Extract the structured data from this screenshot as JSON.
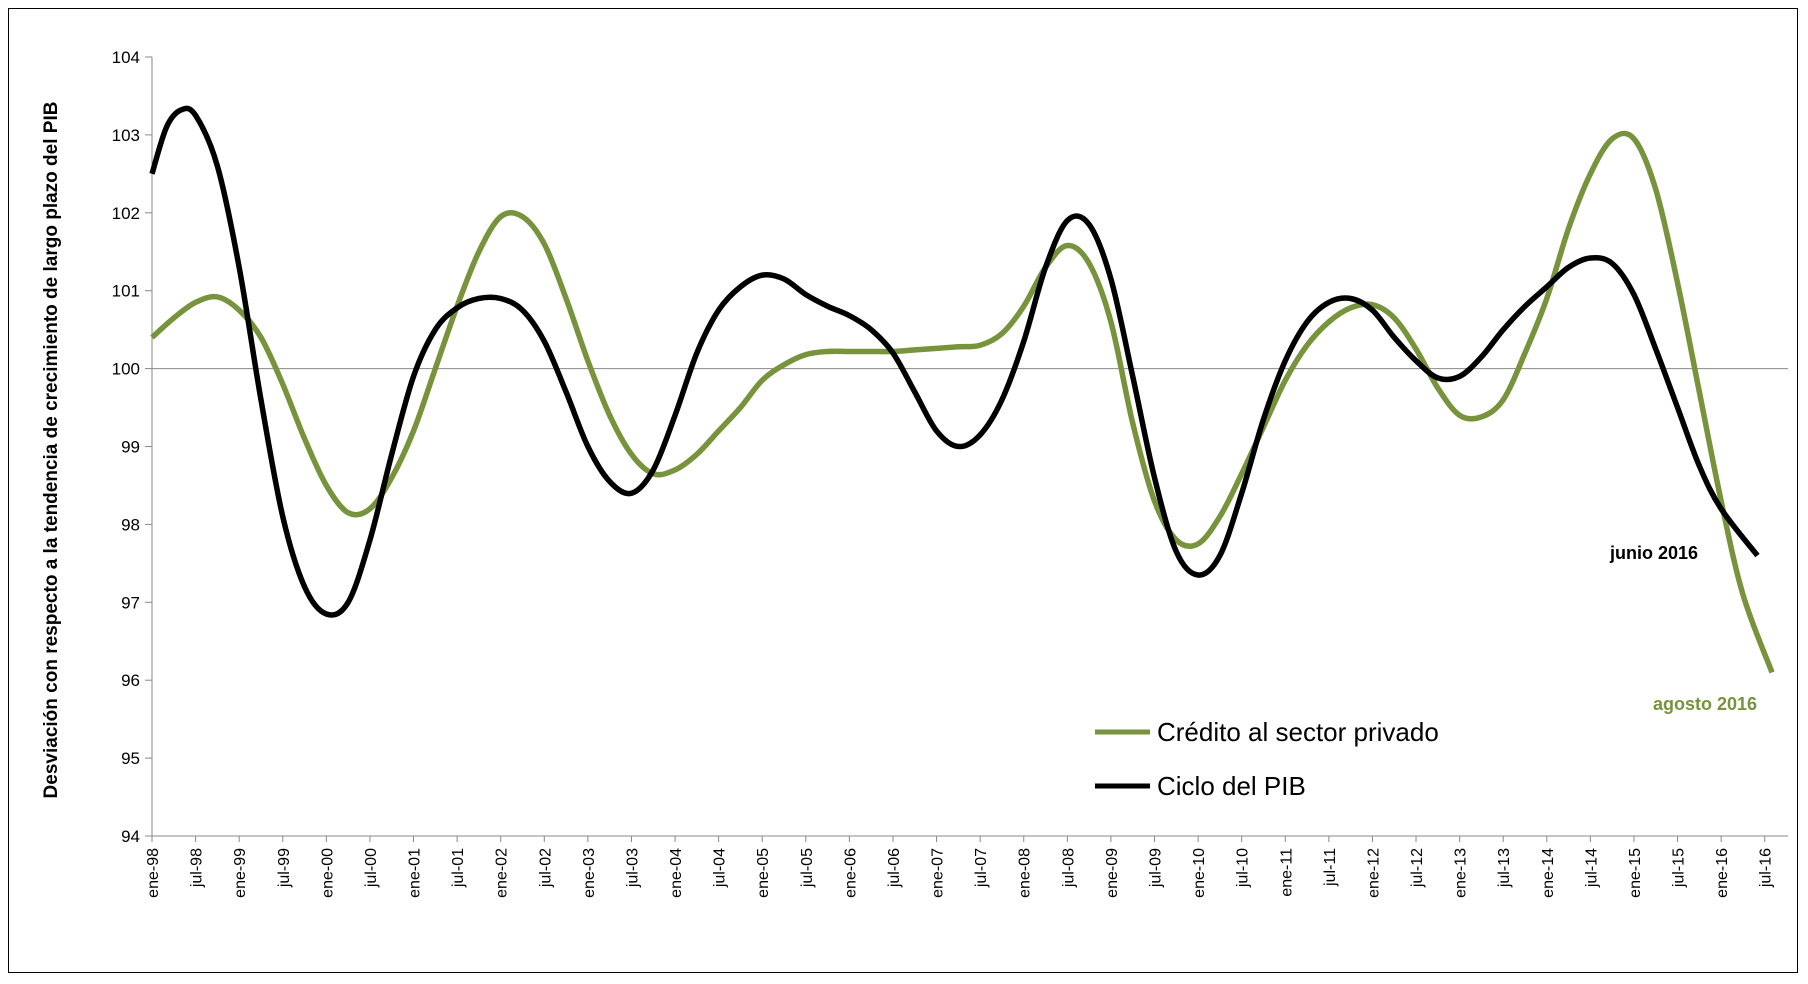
{
  "chart_data": {
    "type": "line",
    "title": "",
    "ylabel": "Desviación con respecto a la tendencia de crecimiento de largo plazo del PIB",
    "xlabel": "",
    "ylim": [
      94,
      104
    ],
    "yticks": [
      "94",
      "95",
      "96",
      "97",
      "98",
      "99",
      "100",
      "101",
      "102",
      "103",
      "104"
    ],
    "reference_line": 100,
    "grid": false,
    "legend_position": "bottom-right",
    "x_start": "1998-01",
    "x_end": "2016-08",
    "x_tick_labels": [
      "ene-98",
      "jul-98",
      "ene-99",
      "jul-99",
      "ene-00",
      "jul-00",
      "ene-01",
      "jul-01",
      "ene-02",
      "jul-02",
      "ene-03",
      "jul-03",
      "ene-04",
      "jul-04",
      "ene-05",
      "jul-05",
      "ene-06",
      "jul-06",
      "ene-07",
      "jul-07",
      "ene-08",
      "jul-08",
      "ene-09",
      "jul-09",
      "ene-10",
      "jul-10",
      "ene-11",
      "jul-11",
      "ene-12",
      "jul-12",
      "ene-13",
      "jul-13",
      "ene-14",
      "jul-14",
      "ene-15",
      "jul-15",
      "ene-16",
      "jul-16"
    ],
    "series": [
      {
        "name": "Crédito al sector privado",
        "color": "#77933c",
        "points": [
          [
            "1998-01",
            100.4
          ],
          [
            "1998-04",
            100.65
          ],
          [
            "1998-07",
            100.85
          ],
          [
            "1998-10",
            100.92
          ],
          [
            "1999-01",
            100.75
          ],
          [
            "1999-04",
            100.4
          ],
          [
            "1999-07",
            99.8
          ],
          [
            "1999-10",
            99.1
          ],
          [
            "2000-01",
            98.5
          ],
          [
            "2000-04",
            98.15
          ],
          [
            "2000-07",
            98.2
          ],
          [
            "2000-10",
            98.6
          ],
          [
            "2001-01",
            99.2
          ],
          [
            "2001-04",
            100.0
          ],
          [
            "2001-07",
            100.8
          ],
          [
            "2001-10",
            101.5
          ],
          [
            "2002-01",
            101.95
          ],
          [
            "2002-04",
            101.95
          ],
          [
            "2002-07",
            101.6
          ],
          [
            "2002-10",
            100.9
          ],
          [
            "2003-01",
            100.1
          ],
          [
            "2003-04",
            99.4
          ],
          [
            "2003-07",
            98.9
          ],
          [
            "2003-10",
            98.65
          ],
          [
            "2004-01",
            98.7
          ],
          [
            "2004-04",
            98.9
          ],
          [
            "2004-07",
            99.2
          ],
          [
            "2004-10",
            99.5
          ],
          [
            "2005-01",
            99.85
          ],
          [
            "2005-04",
            100.05
          ],
          [
            "2005-07",
            100.18
          ],
          [
            "2005-10",
            100.22
          ],
          [
            "2006-01",
            100.22
          ],
          [
            "2006-04",
            100.22
          ],
          [
            "2006-07",
            100.22
          ],
          [
            "2006-10",
            100.24
          ],
          [
            "2007-01",
            100.26
          ],
          [
            "2007-04",
            100.28
          ],
          [
            "2007-07",
            100.3
          ],
          [
            "2007-10",
            100.45
          ],
          [
            "2008-01",
            100.8
          ],
          [
            "2008-04",
            101.3
          ],
          [
            "2008-07",
            101.58
          ],
          [
            "2008-10",
            101.35
          ],
          [
            "2009-01",
            100.6
          ],
          [
            "2009-04",
            99.3
          ],
          [
            "2009-07",
            98.3
          ],
          [
            "2009-10",
            97.8
          ],
          [
            "2010-01",
            97.75
          ],
          [
            "2010-04",
            98.1
          ],
          [
            "2010-07",
            98.65
          ],
          [
            "2010-10",
            99.25
          ],
          [
            "2011-01",
            99.85
          ],
          [
            "2011-04",
            100.3
          ],
          [
            "2011-07",
            100.6
          ],
          [
            "2011-10",
            100.78
          ],
          [
            "2012-01",
            100.82
          ],
          [
            "2012-04",
            100.65
          ],
          [
            "2012-07",
            100.25
          ],
          [
            "2012-10",
            99.75
          ],
          [
            "2013-01",
            99.4
          ],
          [
            "2013-04",
            99.38
          ],
          [
            "2013-07",
            99.6
          ],
          [
            "2013-10",
            100.2
          ],
          [
            "2014-01",
            100.9
          ],
          [
            "2014-04",
            101.8
          ],
          [
            "2014-07",
            102.5
          ],
          [
            "2014-10",
            102.95
          ],
          [
            "2015-01",
            102.95
          ],
          [
            "2015-04",
            102.3
          ],
          [
            "2015-07",
            101.1
          ],
          [
            "2015-10",
            99.7
          ],
          [
            "2016-01",
            98.3
          ],
          [
            "2016-04",
            97.1
          ],
          [
            "2016-08",
            96.1
          ]
        ]
      },
      {
        "name": "Ciclo del PIB",
        "color": "#000000",
        "points": [
          [
            "1998-01",
            102.5
          ],
          [
            "1998-03",
            103.1
          ],
          [
            "1998-05",
            103.32
          ],
          [
            "1998-07",
            103.25
          ],
          [
            "1998-10",
            102.6
          ],
          [
            "1999-01",
            101.3
          ],
          [
            "1999-04",
            99.6
          ],
          [
            "1999-07",
            98.1
          ],
          [
            "1999-10",
            97.2
          ],
          [
            "2000-01",
            96.85
          ],
          [
            "2000-04",
            97.0
          ],
          [
            "2000-07",
            97.8
          ],
          [
            "2000-10",
            98.9
          ],
          [
            "2001-01",
            99.9
          ],
          [
            "2001-04",
            100.5
          ],
          [
            "2001-07",
            100.78
          ],
          [
            "2001-10",
            100.9
          ],
          [
            "2002-01",
            100.9
          ],
          [
            "2002-04",
            100.75
          ],
          [
            "2002-07",
            100.35
          ],
          [
            "2002-10",
            99.7
          ],
          [
            "2003-01",
            99.0
          ],
          [
            "2003-04",
            98.55
          ],
          [
            "2003-07",
            98.4
          ],
          [
            "2003-10",
            98.7
          ],
          [
            "2004-01",
            99.4
          ],
          [
            "2004-04",
            100.2
          ],
          [
            "2004-07",
            100.75
          ],
          [
            "2004-10",
            101.05
          ],
          [
            "2005-01",
            101.2
          ],
          [
            "2005-04",
            101.15
          ],
          [
            "2005-07",
            100.95
          ],
          [
            "2005-10",
            100.8
          ],
          [
            "2006-01",
            100.68
          ],
          [
            "2006-04",
            100.5
          ],
          [
            "2006-07",
            100.2
          ],
          [
            "2006-10",
            99.7
          ],
          [
            "2007-01",
            99.2
          ],
          [
            "2007-04",
            99.0
          ],
          [
            "2007-07",
            99.15
          ],
          [
            "2007-10",
            99.6
          ],
          [
            "2008-01",
            100.35
          ],
          [
            "2008-04",
            101.3
          ],
          [
            "2008-07",
            101.9
          ],
          [
            "2008-10",
            101.85
          ],
          [
            "2009-01",
            101.15
          ],
          [
            "2009-04",
            99.9
          ],
          [
            "2009-07",
            98.6
          ],
          [
            "2009-10",
            97.65
          ],
          [
            "2010-01",
            97.35
          ],
          [
            "2010-04",
            97.6
          ],
          [
            "2010-07",
            98.4
          ],
          [
            "2010-10",
            99.35
          ],
          [
            "2011-01",
            100.1
          ],
          [
            "2011-04",
            100.6
          ],
          [
            "2011-07",
            100.85
          ],
          [
            "2011-10",
            100.9
          ],
          [
            "2012-01",
            100.75
          ],
          [
            "2012-04",
            100.4
          ],
          [
            "2012-07",
            100.1
          ],
          [
            "2012-10",
            99.88
          ],
          [
            "2013-01",
            99.9
          ],
          [
            "2013-04",
            100.15
          ],
          [
            "2013-07",
            100.5
          ],
          [
            "2013-10",
            100.8
          ],
          [
            "2014-01",
            101.05
          ],
          [
            "2014-04",
            101.3
          ],
          [
            "2014-07",
            101.42
          ],
          [
            "2014-10",
            101.35
          ],
          [
            "2015-01",
            100.95
          ],
          [
            "2015-04",
            100.25
          ],
          [
            "2015-07",
            99.5
          ],
          [
            "2015-10",
            98.75
          ],
          [
            "2016-01",
            98.2
          ],
          [
            "2016-06",
            97.6
          ]
        ]
      }
    ],
    "annotations": [
      {
        "text": "junio 2016",
        "color": "#000000",
        "series": "Ciclo del PIB"
      },
      {
        "text": "agosto 2016",
        "color": "#77933c",
        "series": "Crédito al sector privado"
      }
    ]
  }
}
